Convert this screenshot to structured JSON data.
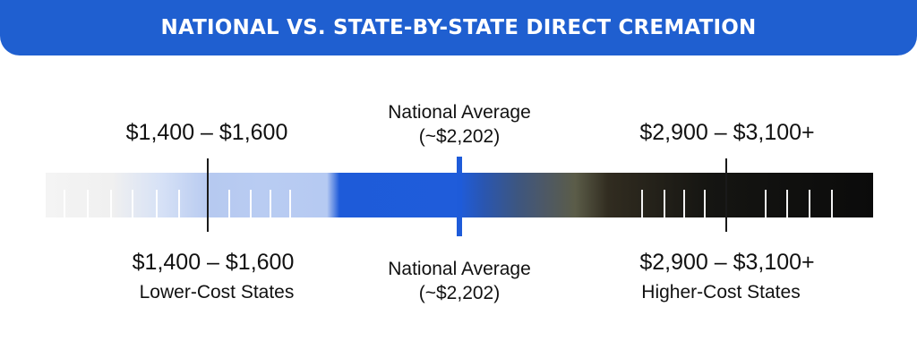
{
  "header": {
    "title": "NATIONAL VS. STATE-BY-STATE DIRECT CREMATION"
  },
  "top_labels": {
    "low": "$1,400 – $1,600",
    "avg_line1": "National Average",
    "avg_line2": "(~$2,202)",
    "high": "$2,900 – $3,100+"
  },
  "bottom_labels": {
    "low_range": "$1,400 – $1,600",
    "low_caption": "Lower-Cost States",
    "avg_line1": "National Average",
    "avg_line2": "(~$2,202)",
    "high_range": "$2,900 – $3,100+",
    "high_caption": "Higher-Cost States"
  },
  "colors": {
    "banner": "#1f5fd0",
    "marker": "#1e5bd9",
    "low_end": "#f4f4f4",
    "high_end": "#0b0b0b"
  }
}
